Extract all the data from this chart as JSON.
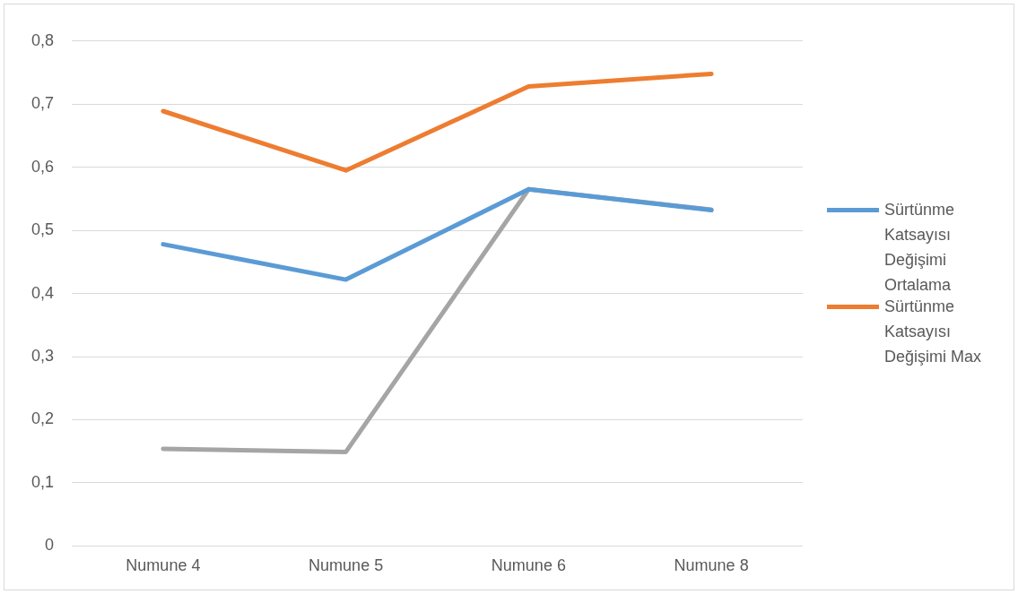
{
  "chart_data": {
    "type": "line",
    "categories": [
      "Numune 4",
      "Numune 5",
      "Numune 6",
      "Numune 8"
    ],
    "series": [
      {
        "name": "Sürtünme Katsayısı Değişimi Ortalama",
        "color": "#5b9bd5",
        "values": [
          0.478,
          0.422,
          0.565,
          0.532
        ]
      },
      {
        "name": "Sürtünme Katsayısı Değişimi Max",
        "color": "#ed7d31",
        "values": [
          0.689,
          0.595,
          0.728,
          0.748
        ]
      },
      {
        "color": "#a5a5a5",
        "values": [
          0.154,
          0.149,
          0.565,
          0.533
        ]
      }
    ],
    "ylim": [
      0,
      0.8
    ],
    "yticks": [
      {
        "value": 0,
        "label": "0"
      },
      {
        "value": 0.1,
        "label": "0,1"
      },
      {
        "value": 0.2,
        "label": "0,2"
      },
      {
        "value": 0.3,
        "label": "0,3"
      },
      {
        "value": 0.4,
        "label": "0,4"
      },
      {
        "value": 0.5,
        "label": "0,5"
      },
      {
        "value": 0.6,
        "label": "0,6"
      },
      {
        "value": 0.7,
        "label": "0,7"
      },
      {
        "value": 0.8,
        "label": "0,8"
      }
    ],
    "grid": "y",
    "legend": "right",
    "marker": "none"
  }
}
